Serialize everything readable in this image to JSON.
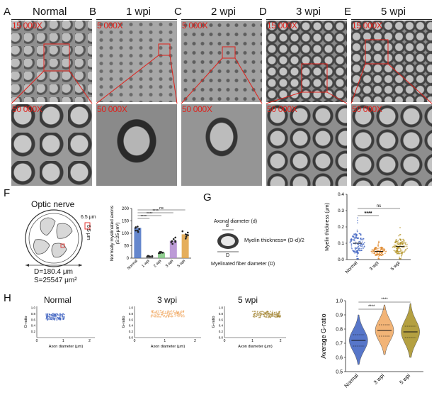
{
  "panel_labels": [
    "A",
    "B",
    "C",
    "D",
    "E",
    "F",
    "G",
    "H"
  ],
  "em_columns": [
    {
      "label": "A",
      "title": "Normal",
      "low_mag": "15 000X",
      "high_mag": "50 000X",
      "tone": "#8f8f8f"
    },
    {
      "label": "B",
      "title": "1 wpi",
      "low_mag": "5 000X",
      "high_mag": "50 000X",
      "tone": "#a2a2a2"
    },
    {
      "label": "C",
      "title": "2 wpi",
      "low_mag": "5 000X",
      "high_mag": "50 000X",
      "tone": "#9c9c9c"
    },
    {
      "label": "D",
      "title": "3 wpi",
      "low_mag": "15 000X",
      "high_mag": "50 000X",
      "tone": "#8a8a8a"
    },
    {
      "label": "E",
      "title": "5 wpi",
      "low_mag": "15 000X",
      "high_mag": "50 000X",
      "tone": "#8c8c8c"
    }
  ],
  "panel_f": {
    "diagram": {
      "title": "Optic nerve",
      "box_w": "6.5 μm",
      "box_h": "6.5 μm",
      "d_text": "D=180.4 μm",
      "s_text": "S=25547 μm²"
    },
    "chart": {
      "ylabel": "Normally myelinated axons",
      "ylabel2": "(S:25 μm²)",
      "categories": [
        "Normal",
        "1 wpi",
        "2 wpi",
        "3 wpi",
        "5 wpi"
      ],
      "values": [
        122,
        8,
        22,
        70,
        96
      ],
      "colors": [
        "#4a72c4",
        "#6c6c6c",
        "#7cc47c",
        "#b08ad0",
        "#e0a040"
      ],
      "ylim": [
        0,
        200
      ],
      "yticks": [
        "0",
        "50",
        "100",
        "150",
        "200"
      ],
      "sig": [
        "****",
        "****",
        "****",
        "ns"
      ]
    }
  },
  "panel_g": {
    "diagram": {
      "axon_label": "Axonal diameter (d)",
      "d": "d",
      "D": "D",
      "thickness": "Myelin thickness= (D-d)/2",
      "fiber_label": "Myelinated fiber diameter (D)"
    },
    "chart": {
      "ylabel": "Myelin thickness (μm)",
      "categories": [
        "Normal",
        "3 wpi",
        "5 wpi"
      ],
      "colors": [
        "#3a5fc0",
        "#e08a30",
        "#b09020"
      ],
      "ylim": [
        0,
        0.4
      ],
      "yticks": [
        "0.0",
        "0.1",
        "0.2",
        "0.3",
        "0.4"
      ],
      "sig": [
        "****",
        "ns"
      ]
    }
  },
  "panel_h": {
    "scatters": [
      {
        "title": "Normal",
        "xlabel": "Axon diameter (μm)",
        "ylabel": "G-ratio",
        "xlim": [
          0,
          2
        ],
        "xticks": [
          "0",
          "1",
          "2"
        ],
        "yticks": [
          "0.2",
          "0.4",
          "0.6",
          "0.8",
          "1.0"
        ],
        "color": "#3a5fc0"
      },
      {
        "title": "3 wpi",
        "xlabel": "Axon diameter (μm)",
        "ylabel": "G-ratio",
        "xlim": [
          0,
          2
        ],
        "xticks": [
          "0",
          "1",
          "2"
        ],
        "yticks": [
          "0.0",
          "0.2",
          "0.4",
          "0.6",
          "0.8",
          "1.0"
        ],
        "color": "#f0a860"
      },
      {
        "title": "5 wpi",
        "xlabel": "Axon diameter (μm)",
        "ylabel": "G-ratio",
        "xlim": [
          0,
          2
        ],
        "xticks": [
          "0",
          "1",
          "2"
        ],
        "yticks": [
          "0.0",
          "0.2",
          "0.4",
          "0.6",
          "0.8",
          "1.0"
        ],
        "color": "#9a7a20"
      }
    ],
    "violin": {
      "ylabel": "Average G-ratio",
      "categories": [
        "Normal",
        "3 wpi",
        "5 wpi"
      ],
      "colors": [
        "#3a5fc0",
        "#f0a860",
        "#a89020"
      ],
      "ylim": [
        0.5,
        1.0
      ],
      "yticks": [
        "0.5",
        "0.6",
        "0.7",
        "0.8",
        "0.9",
        "1.0"
      ],
      "sig": [
        "****",
        "****"
      ]
    }
  },
  "chart_data": [
    {
      "type": "bar",
      "title": "",
      "xlabel": "",
      "ylabel": "Normally myelinated axons (S:25 μm²)",
      "categories": [
        "Normal",
        "1 wpi",
        "2 wpi",
        "3 wpi",
        "5 wpi"
      ],
      "values": [
        122,
        8,
        22,
        70,
        96
      ],
      "ylim": [
        0,
        200
      ]
    },
    {
      "type": "scatter",
      "title": "",
      "ylabel": "Myelin thickness (μm)",
      "categories": [
        "Normal",
        "3 wpi",
        "5 wpi"
      ],
      "medians": [
        0.1,
        0.05,
        0.08
      ],
      "ylim": [
        0,
        0.4
      ]
    },
    {
      "type": "violin",
      "title": "",
      "ylabel": "Average G-ratio",
      "categories": [
        "Normal",
        "3 wpi",
        "5 wpi"
      ],
      "medians": [
        0.72,
        0.79,
        0.78
      ],
      "ylim": [
        0.5,
        1.0
      ]
    }
  ]
}
